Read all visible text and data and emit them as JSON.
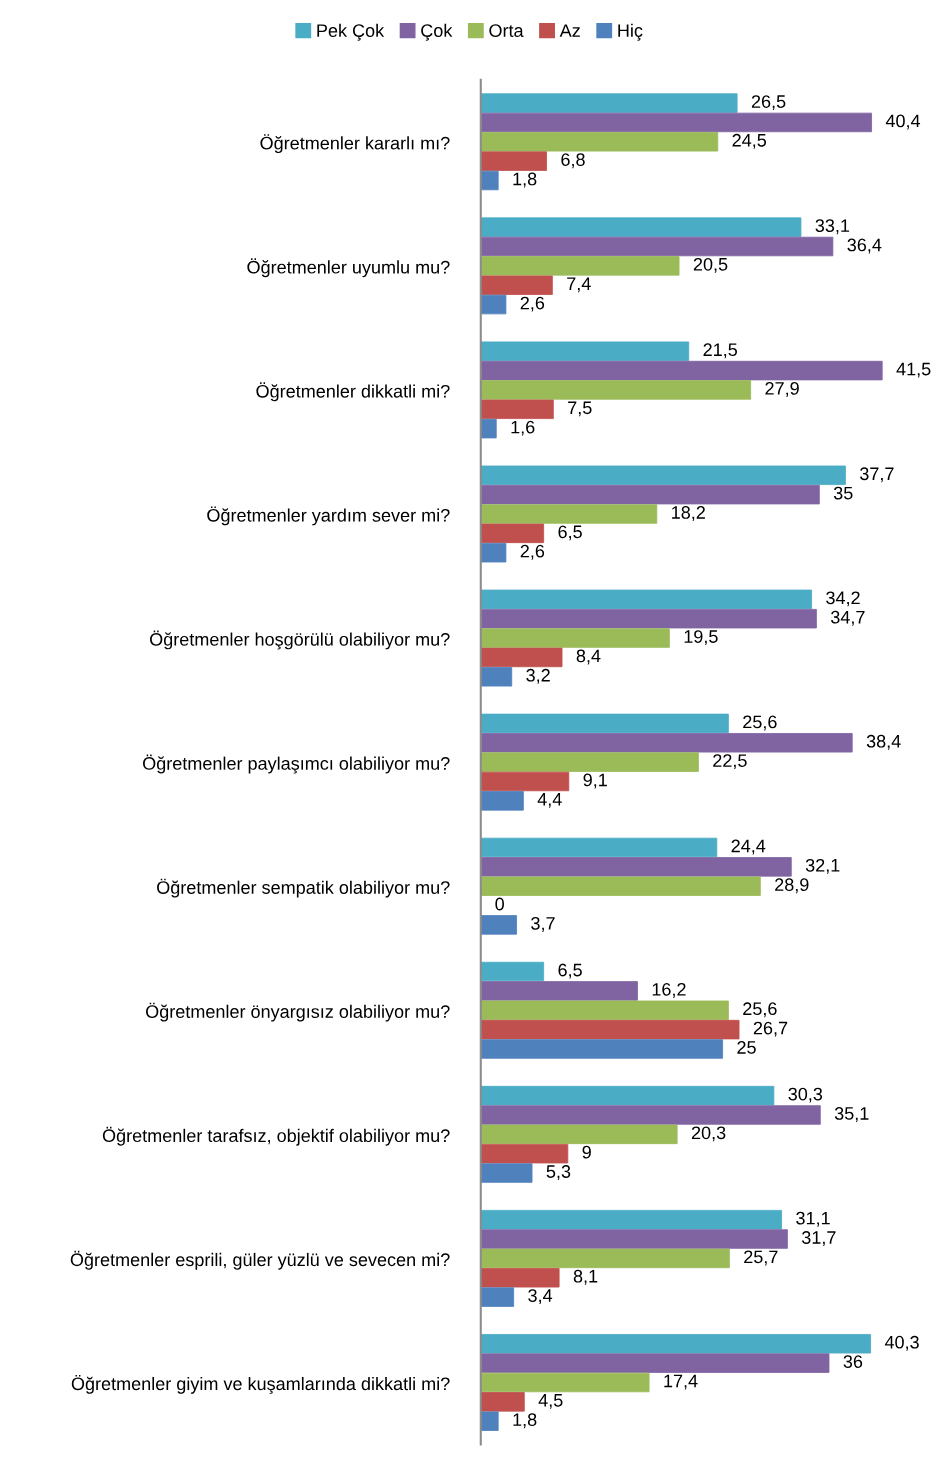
{
  "chart_data": {
    "type": "bar",
    "orientation": "horizontal",
    "categories": [
      "Öğretmenler kararlı mı?",
      "Öğretmenler uyumlu mu?",
      "Öğretmenler dikkatli mi?",
      "Öğretmenler yardım sever mi?",
      "Öğretmenler hoşgörülü olabiliyor mu?",
      "Öğretmenler paylaşımcı olabiliyor mu?",
      "Öğretmenler sempatik olabiliyor mu?",
      "Öğretmenler önyargısız olabiliyor mu?",
      "Öğretmenler tarafsız, objektif olabiliyor mu?",
      "Öğretmenler esprili, güler yüzlü ve sevecen mi?",
      "Öğretmenler giyim ve kuşamlarında dikkatli mi?"
    ],
    "series": [
      {
        "name": "Pek Çok",
        "color": "#4bacc6",
        "values": [
          26.5,
          33.1,
          21.5,
          37.7,
          34.2,
          25.6,
          24.4,
          6.5,
          30.3,
          31.1,
          40.3
        ],
        "value_labels": [
          "26,5",
          "33,1",
          "21,5",
          "37,7",
          "34,2",
          "25,6",
          "24,4",
          "6,5",
          "30,3",
          "31,1",
          "40,3"
        ]
      },
      {
        "name": "Çok",
        "color": "#8064a2",
        "values": [
          40.4,
          36.4,
          41.5,
          35,
          34.7,
          38.4,
          32.1,
          16.2,
          35.1,
          31.7,
          36
        ],
        "value_labels": [
          "40,4",
          "36,4",
          "41,5",
          "35",
          "34,7",
          "38,4",
          "32,1",
          "16,2",
          "35,1",
          "31,7",
          "36"
        ]
      },
      {
        "name": "Orta",
        "color": "#9bbb59",
        "values": [
          24.5,
          20.5,
          27.9,
          18.2,
          19.5,
          22.5,
          28.9,
          25.6,
          20.3,
          25.7,
          17.4
        ],
        "value_labels": [
          "24,5",
          "20,5",
          "27,9",
          "18,2",
          "19,5",
          "22,5",
          "28,9",
          "25,6",
          "20,3",
          "25,7",
          "17,4"
        ]
      },
      {
        "name": "Az",
        "color": "#c0504d",
        "values": [
          6.8,
          7.4,
          7.5,
          6.5,
          8.4,
          9.1,
          0,
          26.7,
          9,
          8.1,
          4.5
        ],
        "value_labels": [
          "6,8",
          "7,4",
          "7,5",
          "6,5",
          "8,4",
          "9,1",
          "0",
          "26,7",
          "9",
          "8,1",
          "4,5"
        ]
      },
      {
        "name": "Hiç",
        "color": "#4f81bd",
        "values": [
          1.8,
          2.6,
          1.6,
          2.6,
          3.2,
          4.4,
          3.7,
          25,
          5.3,
          3.4,
          1.8
        ],
        "value_labels": [
          "1,8",
          "2,6",
          "1,6",
          "2,6",
          "3,2",
          "4,4",
          "3,7",
          "25",
          "5,3",
          "3,4",
          "1,8"
        ]
      }
    ],
    "tick_labels": "y",
    "legend": "top"
  }
}
